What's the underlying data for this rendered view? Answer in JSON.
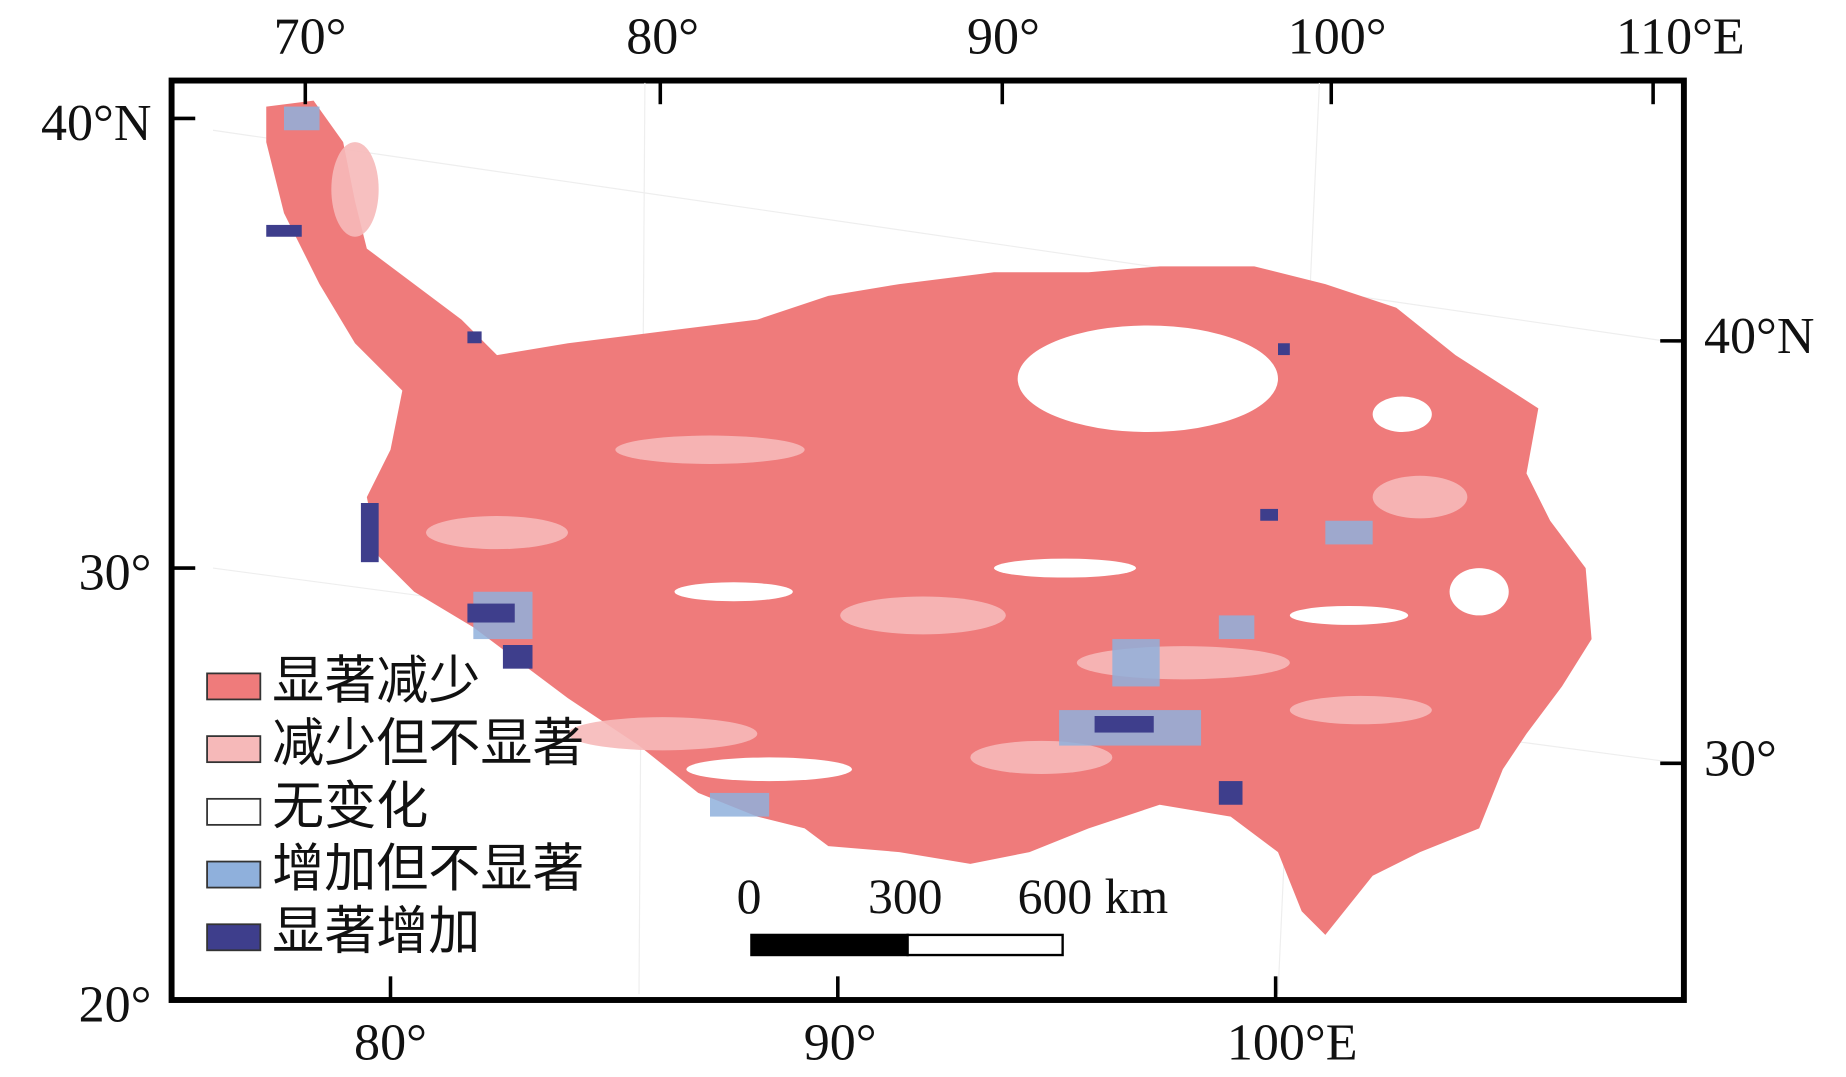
{
  "map": {
    "top_labels": [
      "70°",
      "80°",
      "90°",
      "100°",
      "110°E"
    ],
    "left_labels": [
      "40°N",
      "30°",
      "20°"
    ],
    "right_labels": [
      "40°N",
      "30°"
    ],
    "bottom_labels": [
      "80°",
      "90°",
      "100°E"
    ],
    "legend": [
      {
        "label": "显著减少",
        "color": "#ef7b7b"
      },
      {
        "label": "减少但不显著",
        "color": "#f6b9b9"
      },
      {
        "label": "无变化",
        "color": "#ffffff"
      },
      {
        "label": "增加但不显著",
        "color": "#8fb0dc"
      },
      {
        "label": "显著增加",
        "color": "#3e3e8c"
      }
    ],
    "scale_bar": [
      "0",
      "300",
      "600 km"
    ]
  }
}
